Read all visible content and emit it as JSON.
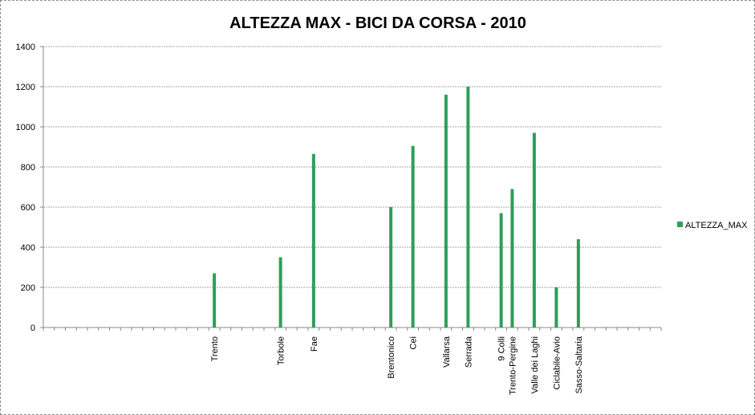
{
  "chart_data": {
    "type": "bar",
    "title": "ALTEZZA MAX - BICI DA CORSA - 2010",
    "xlabel": "",
    "ylabel": "",
    "ylim": [
      0,
      1400
    ],
    "yticks": [
      0,
      200,
      400,
      600,
      800,
      1000,
      1200,
      1400
    ],
    "grid": true,
    "legend_position": "right",
    "slot_count": 56,
    "categories": [
      "Trento",
      "Torbole",
      "Fae",
      "Brentonico",
      "Cei",
      "Vallarsa",
      "Serrada",
      "9 Colli",
      "Trento-Pergine",
      "Valle dei Laghi",
      "Ciclabile-Avio",
      "Sasso-Saltaria"
    ],
    "slots": [
      15,
      21,
      24,
      31,
      33,
      36,
      38,
      41,
      42,
      44,
      46,
      48
    ],
    "series": [
      {
        "name": "ALTEZZA_MAX",
        "color": "#2e9e5b",
        "values": [
          270,
          350,
          865,
          600,
          905,
          1160,
          1200,
          570,
          690,
          970,
          200,
          440
        ]
      }
    ]
  }
}
